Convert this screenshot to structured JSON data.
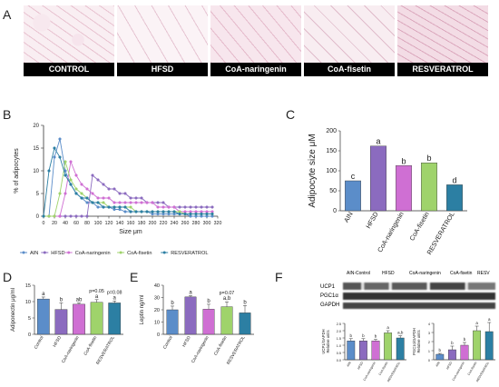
{
  "panels": {
    "A": "A",
    "B": "B",
    "C": "C",
    "D": "D",
    "E": "E",
    "F": "F"
  },
  "histology": {
    "labels": [
      "CONTROL",
      "HFSD",
      "CoA-naringenin",
      "CoA-fisetin",
      "RESVERATROL"
    ]
  },
  "colors": {
    "AIN": "#5b8dc9",
    "HFSD": "#8b6bbf",
    "CoA-naringenin": "#cf6fd3",
    "CoA-fisetin": "#9fd36b",
    "RESVERATROL": "#2c7fa3"
  },
  "chart_data": [
    {
      "id": "B",
      "type": "line",
      "xlabel": "Size μm",
      "ylabel": "% of adipocytes",
      "xlim": [
        0,
        320
      ],
      "ylim": [
        0,
        20
      ],
      "xticks": [
        0,
        20,
        40,
        60,
        80,
        100,
        120,
        140,
        160,
        180,
        200,
        220,
        240,
        260,
        280,
        300,
        320
      ],
      "yticks": [
        0,
        5,
        10,
        15,
        20
      ],
      "legend_position": "bottom",
      "series": [
        {
          "name": "AIN",
          "x": [
            0,
            10,
            20,
            30,
            40,
            50,
            60,
            70,
            80,
            90,
            100,
            110,
            120,
            130,
            140,
            150,
            160,
            170,
            180,
            190,
            200,
            210,
            220,
            230,
            240,
            250,
            260,
            270,
            280,
            290,
            300,
            310
          ],
          "values": [
            0,
            0,
            13,
            17,
            10,
            7,
            5,
            4,
            3,
            3,
            2,
            2,
            2,
            1.5,
            1.5,
            1,
            1,
            1,
            1,
            1,
            0.5,
            0.5,
            0.5,
            0.5,
            0.5,
            0.5,
            0.5,
            0,
            0,
            0,
            0,
            0
          ]
        },
        {
          "name": "HFSD",
          "x": [
            0,
            10,
            20,
            30,
            40,
            50,
            60,
            70,
            80,
            90,
            100,
            110,
            120,
            130,
            140,
            150,
            160,
            170,
            180,
            190,
            200,
            210,
            220,
            230,
            240,
            250,
            260,
            270,
            280,
            290,
            300,
            310
          ],
          "values": [
            0,
            0,
            0,
            0,
            0,
            0,
            0,
            0,
            0,
            9,
            8,
            7,
            6,
            6,
            5,
            5,
            4,
            4,
            4,
            3,
            3,
            3,
            3,
            2,
            2,
            2,
            2,
            2,
            2,
            2,
            2,
            2
          ]
        },
        {
          "name": "CoA-naringenin",
          "x": [
            0,
            10,
            20,
            30,
            40,
            50,
            60,
            70,
            80,
            90,
            100,
            110,
            120,
            130,
            140,
            150,
            160,
            170,
            180,
            190,
            200,
            210,
            220,
            230,
            240,
            250,
            260,
            270,
            280,
            290,
            300,
            310
          ],
          "values": [
            0,
            0,
            0,
            0,
            5,
            12,
            9,
            7,
            6,
            5,
            4,
            4,
            4,
            3,
            3,
            3,
            3,
            3,
            3,
            3,
            3,
            2,
            2,
            2,
            2,
            1,
            1,
            1,
            1,
            1,
            1,
            1
          ]
        },
        {
          "name": "CoA-fisetin",
          "x": [
            0,
            10,
            20,
            30,
            40,
            50,
            60,
            70,
            80,
            90,
            100,
            110,
            120,
            130,
            140,
            150,
            160,
            170,
            180,
            190,
            200,
            210,
            220,
            230,
            240,
            250,
            260,
            270,
            280,
            290,
            300,
            310
          ],
          "values": [
            0,
            0,
            0,
            5,
            12,
            8,
            6,
            5,
            4,
            3,
            3,
            3,
            2,
            2,
            2,
            2,
            2,
            1,
            1,
            1,
            1,
            1,
            1,
            1,
            1,
            1,
            0.5,
            0.5,
            0.5,
            0.5,
            0.5,
            0.5
          ]
        },
        {
          "name": "RESVERATROL",
          "x": [
            0,
            10,
            20,
            30,
            40,
            50,
            60,
            70,
            80,
            90,
            100,
            110,
            120,
            130,
            140,
            150,
            160,
            170,
            180,
            190,
            200,
            210,
            220,
            230,
            240,
            250,
            260,
            270,
            280,
            290,
            300,
            310
          ],
          "values": [
            0,
            10,
            15,
            13,
            9,
            7,
            5,
            4,
            4,
            3,
            3,
            2,
            2,
            2,
            2,
            2,
            1,
            1,
            1,
            1,
            1,
            1,
            1,
            1,
            1,
            0.5,
            0.5,
            0.5,
            0.5,
            0.5,
            0.5,
            0.5
          ]
        }
      ]
    },
    {
      "id": "C",
      "type": "bar",
      "ylabel": "Adipocyte size μM",
      "ylim": [
        0,
        200
      ],
      "yticks": [
        0,
        50,
        100,
        150,
        200
      ],
      "categories": [
        "AIN",
        "HFSD",
        "CoA-naringenin",
        "CoA-fisetin",
        "RESVERATROL"
      ],
      "values": [
        75,
        162,
        113,
        120,
        65
      ],
      "letters": [
        "c",
        "a",
        "b",
        "b",
        "d"
      ]
    },
    {
      "id": "D",
      "type": "bar",
      "ylabel": "Adiponectin μg/ml",
      "ylim": [
        0,
        15
      ],
      "yticks": [
        0,
        5,
        10,
        15
      ],
      "categories": [
        "Control",
        "HFSD",
        "CoA-naringenin",
        "CoA-fisetin",
        "RESVERATROL"
      ],
      "values": [
        10.8,
        7.6,
        9.2,
        9.8,
        9.6
      ],
      "errors": [
        0.6,
        2.0,
        0.4,
        0.8,
        0.6
      ],
      "letters": [
        "a",
        "b",
        "ab",
        "a",
        "a"
      ],
      "annotations": [
        "",
        "",
        "",
        "p=0.05",
        "p=0.08"
      ]
    },
    {
      "id": "E",
      "type": "bar",
      "ylabel": "Leptin ng/ml",
      "ylim": [
        0,
        40
      ],
      "yticks": [
        0,
        10,
        20,
        30,
        40
      ],
      "categories": [
        "Control",
        "HFSD",
        "CoA-naringenin",
        "CoA-fisetin",
        "RESVERATROL"
      ],
      "values": [
        20,
        30.5,
        20.5,
        22.5,
        17.5
      ],
      "errors": [
        3,
        1,
        4,
        4,
        6
      ],
      "letters": [
        "b",
        "a",
        "b",
        "a,b",
        "b"
      ],
      "annotations": [
        "",
        "",
        "",
        "p=0.07",
        ""
      ]
    },
    {
      "id": "F1",
      "type": "bar",
      "ylabel": "UCP1/GAPDH\nRelative units",
      "ylim": [
        0,
        2.5
      ],
      "yticks": [
        0,
        0.5,
        1,
        1.5,
        2,
        2.5
      ],
      "ytick_labels": [
        "0.0",
        "0.5",
        "1.0",
        "1.5",
        "2.0",
        "2.5"
      ],
      "categories": [
        "AIN",
        "HFSD",
        "CoA-naringenin",
        "CoA-fisetin",
        "RESVERATROL"
      ],
      "values": [
        1.3,
        1.3,
        1.3,
        1.85,
        1.5
      ],
      "errors": [
        0.15,
        0.15,
        0.1,
        0.15,
        0.15
      ],
      "letters": [
        "b",
        "b",
        "b",
        "a",
        "a,b"
      ]
    },
    {
      "id": "F2",
      "type": "bar",
      "ylabel": "PGC1α/GAPDH\nRelative units",
      "ylim": [
        0,
        4
      ],
      "yticks": [
        0,
        1,
        2,
        3,
        4
      ],
      "categories": [
        "AIN",
        "HFSD",
        "CoA-naringenin",
        "CoA-fisetin",
        "RESVERATROL"
      ],
      "values": [
        0.6,
        1.1,
        1.6,
        3.2,
        3.1
      ],
      "errors": [
        0.1,
        0.4,
        0.3,
        0.5,
        1.0
      ],
      "letters": [
        "b",
        "b",
        "b",
        "a",
        "a"
      ]
    }
  ],
  "blot": {
    "group_labels": [
      "AIN-Control",
      "HFSD",
      "CoA-naringenin",
      "CoA-fisetin",
      "RESV"
    ],
    "proteins": [
      "UCP1",
      "PGC1α",
      "GAPDH"
    ]
  }
}
